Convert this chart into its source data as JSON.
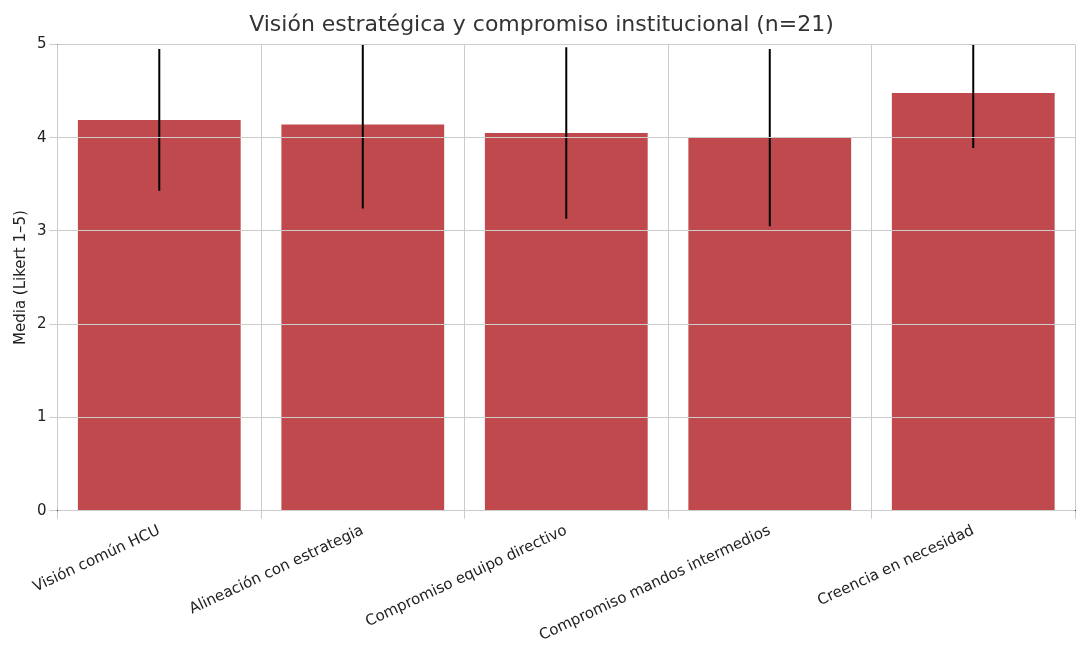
{
  "chart_data": {
    "type": "bar",
    "title": "Visión estratégica y compromiso institucional (n=21)",
    "ylabel": "Media (Likert 1–5)",
    "categories": [
      "Visión común HCU",
      "Alineación con estrategia",
      "Compromiso equipo directivo",
      "Compromiso mandos intermedios",
      "Creencia en necesidad"
    ],
    "values": [
      4.19,
      4.14,
      4.05,
      4.0,
      4.48
    ],
    "errors": [
      0.76,
      [
        3.24,
        5.0
      ],
      0.92,
      0.95,
      [
        3.89,
        5.0
      ]
    ],
    "color": "#c0494e",
    "ylim": [
      0,
      5
    ],
    "yticks": [
      0,
      1,
      2,
      3,
      4,
      5
    ],
    "grid": true
  }
}
